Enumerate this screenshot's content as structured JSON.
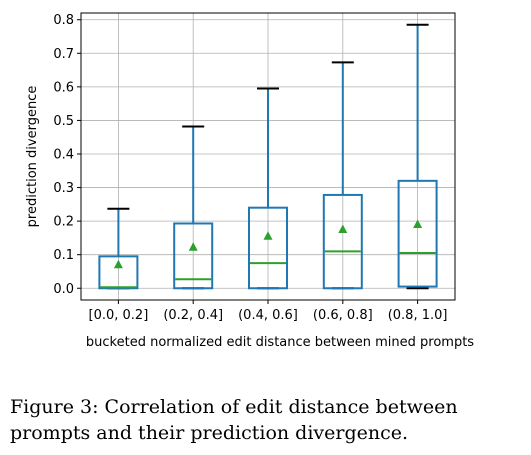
{
  "chart_data": {
    "type": "box",
    "categories": [
      "[0.0, 0.2]",
      "(0.2, 0.4]",
      "(0.4, 0.6]",
      "(0.6, 0.8]",
      "(0.8, 1.0]"
    ],
    "boxes": [
      {
        "whisker_low": 0.0,
        "q1": 0.0,
        "median": 0.003,
        "q3": 0.095,
        "whisker_high": 0.237,
        "mean": 0.07
      },
      {
        "whisker_low": 0.0,
        "q1": 0.0,
        "median": 0.027,
        "q3": 0.193,
        "whisker_high": 0.482,
        "mean": 0.122
      },
      {
        "whisker_low": 0.0,
        "q1": 0.0,
        "median": 0.075,
        "q3": 0.24,
        "whisker_high": 0.595,
        "mean": 0.155
      },
      {
        "whisker_low": 0.0,
        "q1": 0.0,
        "median": 0.11,
        "q3": 0.278,
        "whisker_high": 0.673,
        "mean": 0.175
      },
      {
        "whisker_low": 0.0,
        "q1": 0.005,
        "median": 0.105,
        "q3": 0.32,
        "whisker_high": 0.785,
        "mean": 0.19
      }
    ],
    "ylabel": "prediction divergence",
    "xlabel": "bucketed normalized edit distance between mined prompts",
    "ylim": [
      -0.035,
      0.82
    ],
    "yticks": [
      0.0,
      0.1,
      0.2,
      0.3,
      0.4,
      0.5,
      0.6,
      0.7,
      0.8
    ],
    "ytick_labels": [
      "0.0",
      "0.1",
      "0.2",
      "0.3",
      "0.4",
      "0.5",
      "0.6",
      "0.7",
      "0.8"
    ],
    "grid": true,
    "colors": {
      "box": "#1f77b4",
      "median": "#2ca02c",
      "mean_marker": "#2ca02c",
      "whisker_cap": "#000000",
      "grid": "#b0b0b0"
    }
  },
  "caption": "Figure 3: Correlation of edit distance between prompts and their prediction divergence."
}
